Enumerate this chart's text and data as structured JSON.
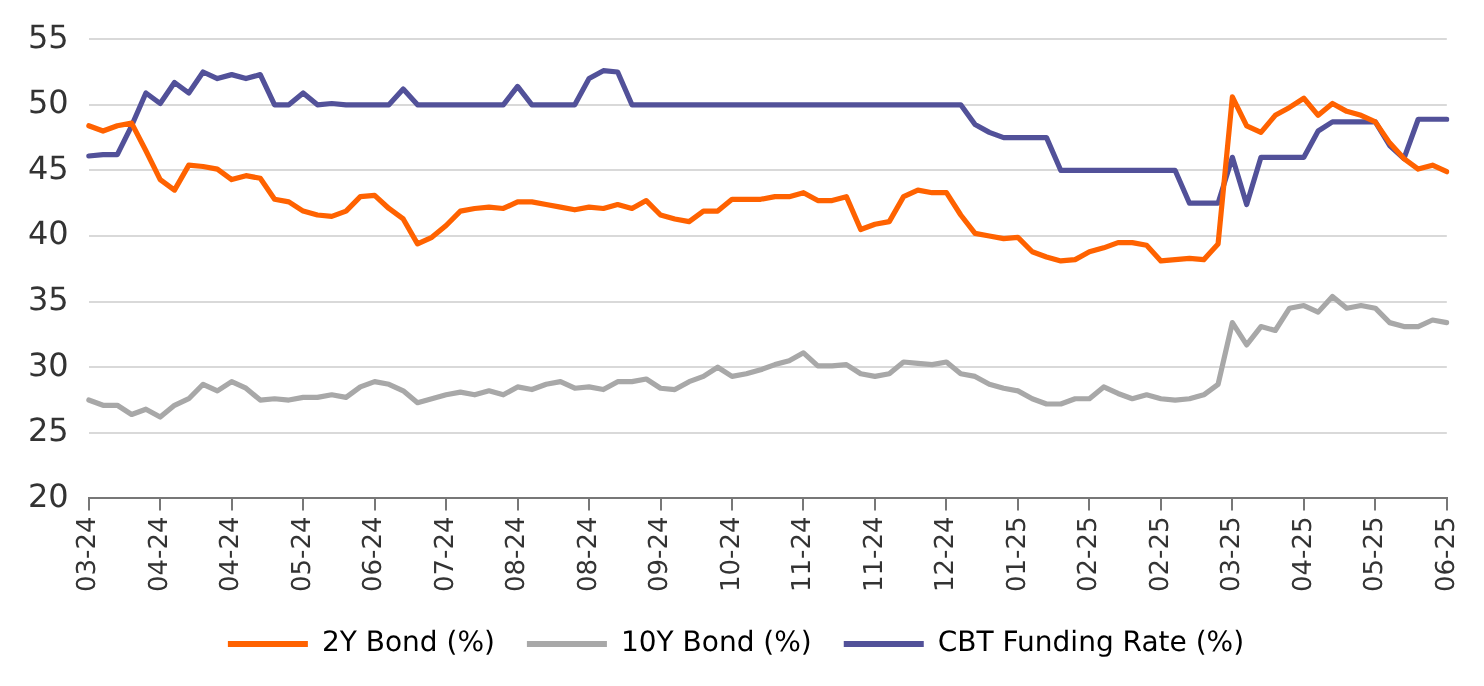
{
  "chart_data": {
    "type": "line",
    "categories": [
      "03-24",
      null,
      null,
      null,
      null,
      "04-24",
      null,
      null,
      null,
      null,
      "04-24",
      null,
      null,
      null,
      null,
      "05-24",
      null,
      null,
      null,
      null,
      "06-24",
      null,
      null,
      null,
      null,
      "07-24",
      null,
      null,
      null,
      null,
      "08-24",
      null,
      null,
      null,
      null,
      "08-24",
      null,
      null,
      null,
      null,
      "09-24",
      null,
      null,
      null,
      null,
      "10-24",
      null,
      null,
      null,
      null,
      "11-24",
      null,
      null,
      null,
      null,
      "11-24",
      null,
      null,
      null,
      null,
      "12-24",
      null,
      null,
      null,
      null,
      "01-25",
      null,
      null,
      null,
      null,
      "02-25",
      null,
      null,
      null,
      null,
      "02-25",
      null,
      null,
      null,
      null,
      "03-25",
      null,
      null,
      null,
      null,
      "04-25",
      null,
      null,
      null,
      null,
      "05-25",
      null,
      null,
      null,
      null,
      "06-25"
    ],
    "series": [
      {
        "name": "2Y Bond (%)",
        "color": "#ff6200",
        "values": [
          48.4,
          48.0,
          48.4,
          48.6,
          46.5,
          44.3,
          43.5,
          45.4,
          45.3,
          45.1,
          44.3,
          44.6,
          44.4,
          42.8,
          42.6,
          41.9,
          41.6,
          41.5,
          41.9,
          43.0,
          43.1,
          42.1,
          41.3,
          39.4,
          39.9,
          40.8,
          41.9,
          42.1,
          42.2,
          42.1,
          42.6,
          42.6,
          42.4,
          42.2,
          42.0,
          42.2,
          42.1,
          42.4,
          42.1,
          42.7,
          41.6,
          41.3,
          41.1,
          41.9,
          41.9,
          42.8,
          42.8,
          42.8,
          43.0,
          43.0,
          43.3,
          42.7,
          42.7,
          43.0,
          40.5,
          40.9,
          41.1,
          43.0,
          43.5,
          43.3,
          43.3,
          41.6,
          40.2,
          40.0,
          39.8,
          39.9,
          38.8,
          38.4,
          38.1,
          38.2,
          38.8,
          39.1,
          39.5,
          39.5,
          39.3,
          38.1,
          38.2,
          38.3,
          38.2,
          39.4,
          50.6,
          48.4,
          47.9,
          49.2,
          49.8,
          50.5,
          49.2,
          50.1,
          49.5,
          49.2,
          48.7,
          47.1,
          45.9,
          45.1,
          45.4,
          44.9
        ]
      },
      {
        "name": "10Y Bond (%)",
        "color": "#a8a8a8",
        "values": [
          27.5,
          27.1,
          27.1,
          26.4,
          26.8,
          26.2,
          27.1,
          27.6,
          28.7,
          28.2,
          28.9,
          28.4,
          27.5,
          27.6,
          27.5,
          27.7,
          27.7,
          27.9,
          27.7,
          28.5,
          28.9,
          28.7,
          28.2,
          27.3,
          27.6,
          27.9,
          28.1,
          27.9,
          28.2,
          27.9,
          28.5,
          28.3,
          28.7,
          28.9,
          28.4,
          28.5,
          28.3,
          28.9,
          28.9,
          29.1,
          28.4,
          28.3,
          28.9,
          29.3,
          30.0,
          29.3,
          29.5,
          29.8,
          30.2,
          30.5,
          31.1,
          30.1,
          30.1,
          30.2,
          29.5,
          29.3,
          29.5,
          30.4,
          30.3,
          30.2,
          30.4,
          29.5,
          29.3,
          28.7,
          28.4,
          28.2,
          27.6,
          27.2,
          27.2,
          27.6,
          27.6,
          28.5,
          28.0,
          27.6,
          27.9,
          27.6,
          27.5,
          27.6,
          27.9,
          28.7,
          33.4,
          31.7,
          33.1,
          32.8,
          34.5,
          34.7,
          34.2,
          35.4,
          34.5,
          34.7,
          34.5,
          33.4,
          33.1,
          33.1,
          33.6,
          33.4
        ]
      },
      {
        "name": "CBT Funding Rate (%)",
        "color": "#525199",
        "values": [
          46.1,
          46.2,
          46.2,
          48.4,
          50.9,
          50.1,
          51.7,
          50.9,
          52.5,
          52.0,
          52.3,
          52.0,
          52.3,
          50,
          50,
          50.9,
          50,
          50.1,
          50,
          50,
          50,
          50,
          51.2,
          50,
          50,
          50,
          50,
          50,
          50,
          50,
          51.4,
          50,
          50,
          50,
          50,
          52.0,
          52.6,
          52.5,
          50,
          50,
          50,
          50,
          50,
          50,
          50,
          50,
          50,
          50,
          50,
          50,
          50,
          50,
          50,
          50,
          50,
          50,
          50,
          50,
          50,
          50,
          50,
          50,
          48.5,
          47.9,
          47.5,
          47.5,
          47.5,
          47.5,
          45,
          45,
          45,
          45,
          45,
          45,
          45,
          45,
          45,
          42.5,
          42.5,
          42.5,
          46,
          42.4,
          46,
          46,
          46,
          46,
          48,
          48.7,
          48.7,
          48.7,
          48.7,
          46.9,
          45.9,
          48.9,
          48.9,
          48.9
        ]
      }
    ],
    "ylim": [
      20,
      55
    ],
    "yticks": [
      20,
      25,
      30,
      35,
      40,
      45,
      50,
      55
    ],
    "grid": "y",
    "legend": "bottom",
    "marker": "none",
    "line_style": "solid"
  }
}
